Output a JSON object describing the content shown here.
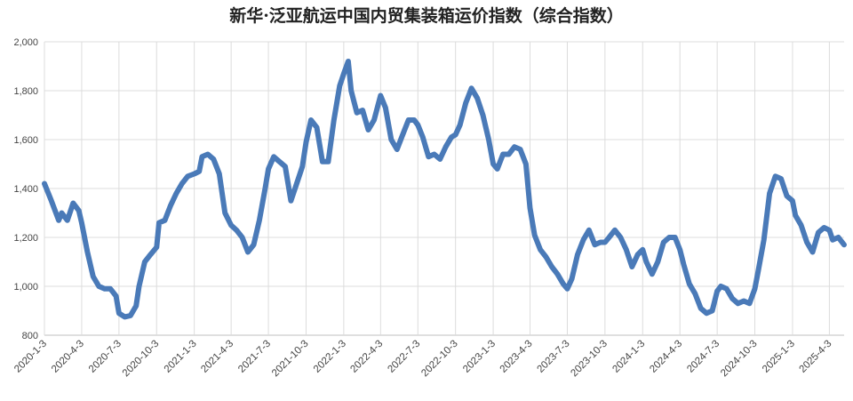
{
  "chart_data": {
    "type": "line",
    "title": "新华·泛亚航运中国内贸集装箱运价指数（综合指数）",
    "xlabel": "",
    "ylabel": "",
    "ylim": [
      800,
      2000
    ],
    "yticks": [
      "800",
      "1,000",
      "1,200",
      "1,400",
      "1,600",
      "1,800",
      "2,000"
    ],
    "xticks": [
      "2020-1-3",
      "2020-4-3",
      "2020-7-3",
      "2020-10-3",
      "2021-1-3",
      "2021-4-3",
      "2021-7-3",
      "2021-10-3",
      "2022-1-3",
      "2022-4-3",
      "2022-7-3",
      "2022-10-3",
      "2023-1-3",
      "2023-4-3",
      "2023-7-3",
      "2023-10-3",
      "2024-1-3",
      "2024-4-3",
      "2024-7-3",
      "2024-10-3",
      "2025-1-3",
      "2025-4-3"
    ],
    "grid": "vertical-and-horizontal",
    "legend": "none",
    "line_color": "#4a7ab8",
    "series": [
      {
        "points": [
          [
            "2020-1-3",
            1420
          ],
          [
            "2020-1-20",
            1350
          ],
          [
            "2020-2-7",
            1270
          ],
          [
            "2020-2-14",
            1300
          ],
          [
            "2020-2-28",
            1270
          ],
          [
            "2020-3-13",
            1340
          ],
          [
            "2020-3-27",
            1310
          ],
          [
            "2020-4-3",
            1260
          ],
          [
            "2020-4-17",
            1140
          ],
          [
            "2020-5-1",
            1040
          ],
          [
            "2020-5-15",
            1000
          ],
          [
            "2020-5-29",
            990
          ],
          [
            "2020-6-12",
            990
          ],
          [
            "2020-6-26",
            960
          ],
          [
            "2020-7-3",
            890
          ],
          [
            "2020-7-17",
            875
          ],
          [
            "2020-7-31",
            880
          ],
          [
            "2020-8-14",
            920
          ],
          [
            "2020-8-21",
            1000
          ],
          [
            "2020-9-4",
            1100
          ],
          [
            "2020-9-18",
            1130
          ],
          [
            "2020-10-3",
            1160
          ],
          [
            "2020-10-9",
            1260
          ],
          [
            "2020-10-23",
            1270
          ],
          [
            "2020-11-6",
            1330
          ],
          [
            "2020-11-20",
            1380
          ],
          [
            "2020-12-4",
            1420
          ],
          [
            "2020-12-18",
            1450
          ],
          [
            "2021-1-3",
            1460
          ],
          [
            "2021-1-15",
            1470
          ],
          [
            "2021-1-22",
            1530
          ],
          [
            "2021-2-5",
            1540
          ],
          [
            "2021-2-19",
            1520
          ],
          [
            "2021-3-5",
            1460
          ],
          [
            "2021-3-19",
            1300
          ],
          [
            "2021-4-3",
            1250
          ],
          [
            "2021-4-16",
            1230
          ],
          [
            "2021-4-30",
            1200
          ],
          [
            "2021-5-14",
            1140
          ],
          [
            "2021-5-28",
            1170
          ],
          [
            "2021-6-11",
            1270
          ],
          [
            "2021-6-25",
            1400
          ],
          [
            "2021-7-3",
            1480
          ],
          [
            "2021-7-16",
            1530
          ],
          [
            "2021-7-30",
            1510
          ],
          [
            "2021-8-13",
            1490
          ],
          [
            "2021-8-27",
            1350
          ],
          [
            "2021-9-10",
            1420
          ],
          [
            "2021-9-24",
            1490
          ],
          [
            "2021-10-3",
            1590
          ],
          [
            "2021-10-15",
            1680
          ],
          [
            "2021-10-29",
            1650
          ],
          [
            "2021-11-12",
            1510
          ],
          [
            "2021-11-26",
            1510
          ],
          [
            "2021-12-10",
            1680
          ],
          [
            "2021-12-24",
            1820
          ],
          [
            "2022-1-3",
            1870
          ],
          [
            "2022-1-14",
            1920
          ],
          [
            "2022-1-21",
            1800
          ],
          [
            "2022-2-4",
            1710
          ],
          [
            "2022-2-18",
            1720
          ],
          [
            "2022-3-4",
            1640
          ],
          [
            "2022-3-18",
            1680
          ],
          [
            "2022-4-3",
            1780
          ],
          [
            "2022-4-15",
            1730
          ],
          [
            "2022-4-29",
            1600
          ],
          [
            "2022-5-13",
            1560
          ],
          [
            "2022-5-27",
            1620
          ],
          [
            "2022-6-10",
            1680
          ],
          [
            "2022-6-24",
            1680
          ],
          [
            "2022-7-3",
            1660
          ],
          [
            "2022-7-15",
            1610
          ],
          [
            "2022-7-29",
            1530
          ],
          [
            "2022-8-12",
            1540
          ],
          [
            "2022-8-26",
            1520
          ],
          [
            "2022-9-9",
            1570
          ],
          [
            "2022-9-23",
            1610
          ],
          [
            "2022-10-3",
            1620
          ],
          [
            "2022-10-14",
            1660
          ],
          [
            "2022-10-28",
            1750
          ],
          [
            "2022-11-11",
            1810
          ],
          [
            "2022-11-25",
            1770
          ],
          [
            "2022-12-9",
            1700
          ],
          [
            "2022-12-23",
            1600
          ],
          [
            "2023-1-3",
            1500
          ],
          [
            "2023-1-13",
            1480
          ],
          [
            "2023-1-27",
            1540
          ],
          [
            "2023-2-10",
            1540
          ],
          [
            "2023-2-24",
            1570
          ],
          [
            "2023-3-10",
            1560
          ],
          [
            "2023-3-24",
            1500
          ],
          [
            "2023-4-3",
            1320
          ],
          [
            "2023-4-14",
            1210
          ],
          [
            "2023-4-28",
            1150
          ],
          [
            "2023-5-12",
            1120
          ],
          [
            "2023-5-26",
            1080
          ],
          [
            "2023-6-9",
            1050
          ],
          [
            "2023-6-23",
            1010
          ],
          [
            "2023-7-3",
            990
          ],
          [
            "2023-7-14",
            1030
          ],
          [
            "2023-7-28",
            1130
          ],
          [
            "2023-8-11",
            1190
          ],
          [
            "2023-8-25",
            1230
          ],
          [
            "2023-9-8",
            1170
          ],
          [
            "2023-9-22",
            1180
          ],
          [
            "2023-10-3",
            1180
          ],
          [
            "2023-10-13",
            1200
          ],
          [
            "2023-10-27",
            1230
          ],
          [
            "2023-11-10",
            1200
          ],
          [
            "2023-11-24",
            1150
          ],
          [
            "2023-12-8",
            1080
          ],
          [
            "2023-12-22",
            1130
          ],
          [
            "2024-1-3",
            1150
          ],
          [
            "2024-1-12",
            1100
          ],
          [
            "2024-1-26",
            1050
          ],
          [
            "2024-2-9",
            1100
          ],
          [
            "2024-2-23",
            1180
          ],
          [
            "2024-3-8",
            1200
          ],
          [
            "2024-3-22",
            1200
          ],
          [
            "2024-4-3",
            1150
          ],
          [
            "2024-4-12",
            1090
          ],
          [
            "2024-4-26",
            1010
          ],
          [
            "2024-5-10",
            970
          ],
          [
            "2024-5-24",
            910
          ],
          [
            "2024-6-7",
            890
          ],
          [
            "2024-6-21",
            900
          ],
          [
            "2024-7-3",
            980
          ],
          [
            "2024-7-12",
            1000
          ],
          [
            "2024-7-26",
            990
          ],
          [
            "2024-8-9",
            950
          ],
          [
            "2024-8-23",
            930
          ],
          [
            "2024-9-6",
            940
          ],
          [
            "2024-9-20",
            930
          ],
          [
            "2024-10-3",
            990
          ],
          [
            "2024-10-11",
            1060
          ],
          [
            "2024-10-25",
            1190
          ],
          [
            "2024-11-8",
            1380
          ],
          [
            "2024-11-22",
            1450
          ],
          [
            "2024-12-6",
            1440
          ],
          [
            "2024-12-20",
            1370
          ],
          [
            "2025-1-3",
            1350
          ],
          [
            "2025-1-10",
            1290
          ],
          [
            "2025-1-24",
            1250
          ],
          [
            "2025-2-7",
            1180
          ],
          [
            "2025-2-21",
            1140
          ],
          [
            "2025-3-7",
            1220
          ],
          [
            "2025-3-21",
            1240
          ],
          [
            "2025-4-3",
            1230
          ],
          [
            "2025-4-11",
            1190
          ],
          [
            "2025-4-25",
            1200
          ],
          [
            "2025-5-9",
            1170
          ]
        ]
      }
    ]
  }
}
